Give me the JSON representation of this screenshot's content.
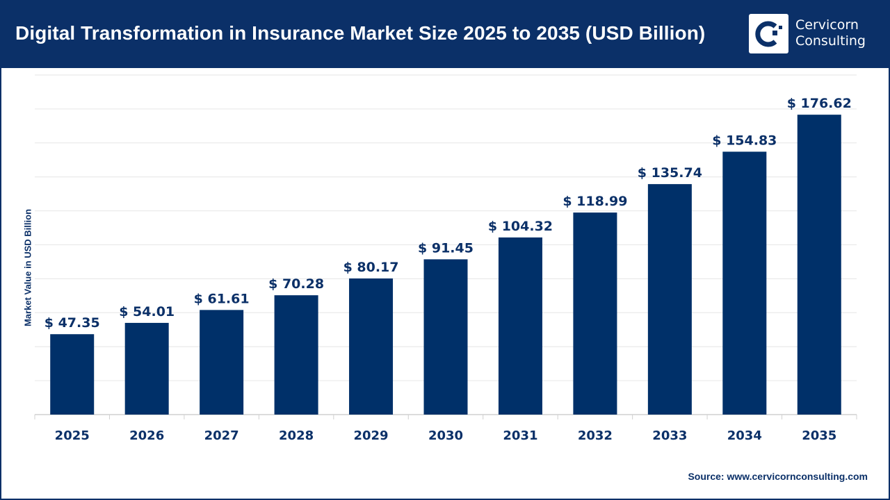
{
  "header": {
    "title": "Digital Transformation in Insurance Market Size 2025 to 2035 (USD Billion)",
    "logo_text_1": "Cervicorn",
    "logo_text_2": "Consulting"
  },
  "source": "Source: www.cervicornconsulting.com",
  "colors": {
    "brand": "#0b3068",
    "bar": "#003069",
    "grid": "#e6e6e6"
  },
  "chart_data": {
    "type": "bar",
    "title": "Digital Transformation in Insurance Market Size 2025 to 2035 (USD Billion)",
    "xlabel": "",
    "ylabel": "Market Value in USD Billion",
    "categories": [
      "2025",
      "2026",
      "2027",
      "2028",
      "2029",
      "2030",
      "2031",
      "2032",
      "2033",
      "2034",
      "2035"
    ],
    "values": [
      47.35,
      54.01,
      61.61,
      70.28,
      80.17,
      91.45,
      104.32,
      118.99,
      135.74,
      154.83,
      176.62
    ],
    "data_labels": [
      "$ 47.35",
      "$ 54.01",
      "$ 61.61",
      "$ 70.28",
      "$ 80.17",
      "$ 91.45",
      "$ 104.32",
      "$ 118.99",
      "$ 135.74",
      "$ 154.83",
      "$ 176.62"
    ],
    "ylim": [
      0,
      200
    ],
    "ygrid_step": 20,
    "grid": true,
    "ytick_labels_shown": false,
    "legend": "none"
  }
}
